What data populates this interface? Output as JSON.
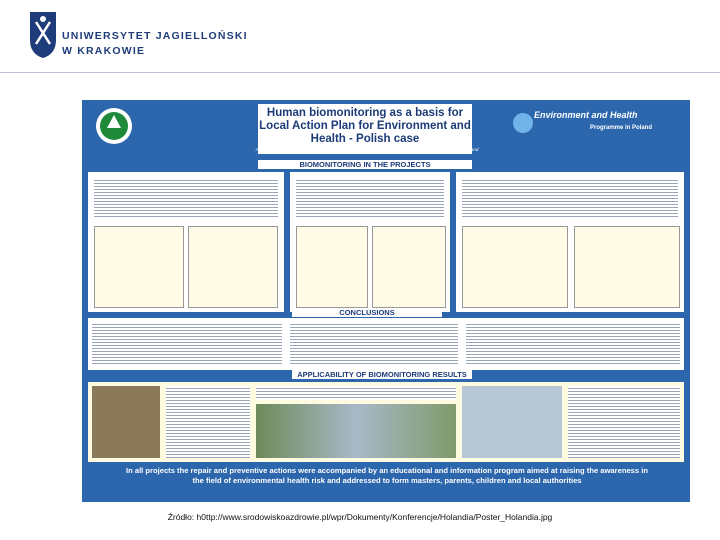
{
  "header": {
    "line1": "UNIWERSYTET JAGIELLOŃSKI",
    "line2": "W KRAKOWIE"
  },
  "poster": {
    "title": "Human biomonitoring as a basis for Local Action Plan for Environment and Health - Polish case",
    "authors": "Anna Szpryszka-Sikorska Ph.D., Elżbieta Kulka Ph.D. Institute for Ecology of Industrial Areas, Katowice, Poland",
    "programme_title": "Environment and Health",
    "programme_subtitle": "Programme in Poland",
    "sections": [
      "BIOMONITORING IN THE PROJECTS",
      "CONCLUSIONS",
      "APPLICABILITY OF BIOMONITORING RESULTS"
    ],
    "footer": "In all projects the repair and preventive actions were accompanied by an educational and information program aimed at raising the awareness in the field of environmental health risk and addressed to form masters, parents, children and local authorities"
  },
  "caption": "Źródło: h0ttp://www.srodowiskoazdrowie.pl/wpr/Dokumenty/Konferencje/Holandia/Poster_Holandia.jpg"
}
